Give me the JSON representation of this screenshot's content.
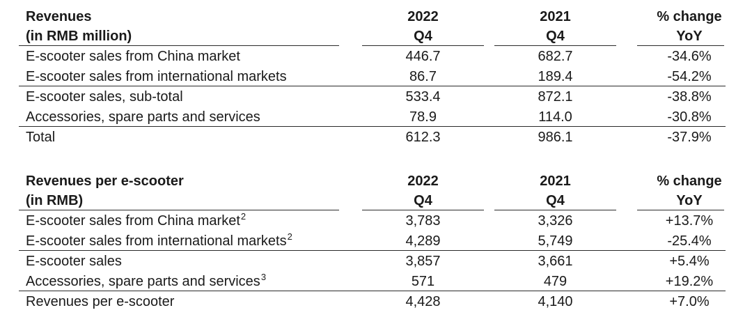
{
  "revenues": {
    "header": {
      "label_line1": "Revenues",
      "label_line2": "(in RMB million)",
      "col_a_line1": "2022",
      "col_a_line2": "Q4",
      "col_b_line1": "2021",
      "col_b_line2": "Q4",
      "col_c_line1": "% change",
      "col_c_line2": "YoY"
    },
    "rows": [
      {
        "label": "E-scooter sales from China market",
        "a": "446.7",
        "b": "682.7",
        "c": "-34.6%"
      },
      {
        "label": "E-scooter sales from international markets",
        "a": "86.7",
        "b": "189.4",
        "c": "-54.2%"
      },
      {
        "label": "E-scooter sales, sub-total",
        "a": "533.4",
        "b": "872.1",
        "c": "-38.8%"
      },
      {
        "label": "Accessories, spare parts and services",
        "a": "78.9",
        "b": "114.0",
        "c": "-30.8%"
      },
      {
        "label": "Total",
        "a": "612.3",
        "b": "986.1",
        "c": "-37.9%"
      }
    ]
  },
  "per_scooter": {
    "header": {
      "label_line1": "Revenues per e-scooter",
      "label_line2": "(in RMB)",
      "col_a_line1": "2022",
      "col_a_line2": "Q4",
      "col_b_line1": "2021",
      "col_b_line2": "Q4",
      "col_c_line1": "% change",
      "col_c_line2": "YoY"
    },
    "rows": [
      {
        "label": "E-scooter sales from China market",
        "sup": "2",
        "a": "3,783",
        "b": "3,326",
        "c": "+13.7%"
      },
      {
        "label": "E-scooter sales from international markets",
        "sup": "2",
        "a": "4,289",
        "b": "5,749",
        "c": "-25.4%"
      },
      {
        "label": "E-scooter sales",
        "a": "3,857",
        "b": "3,661",
        "c": "+5.4%"
      },
      {
        "label": "Accessories, spare parts and services",
        "sup": "3",
        "a": "571",
        "b": "479",
        "c": "+19.2%"
      },
      {
        "label": "Revenues per e-scooter",
        "a": "4,428",
        "b": "4,140",
        "c": "+7.0%"
      }
    ]
  }
}
